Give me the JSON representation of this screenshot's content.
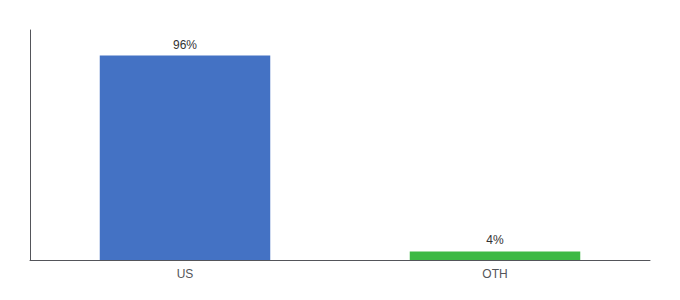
{
  "chart_data": {
    "type": "bar",
    "categories": [
      "US",
      "OTH"
    ],
    "values": [
      96,
      4
    ],
    "value_labels": [
      "96%",
      "4%"
    ],
    "colors": [
      "#4472c4",
      "#3cb944"
    ],
    "ylim": [
      0,
      108
    ],
    "data_labels": true,
    "grid": false,
    "tick_labels": "x"
  }
}
